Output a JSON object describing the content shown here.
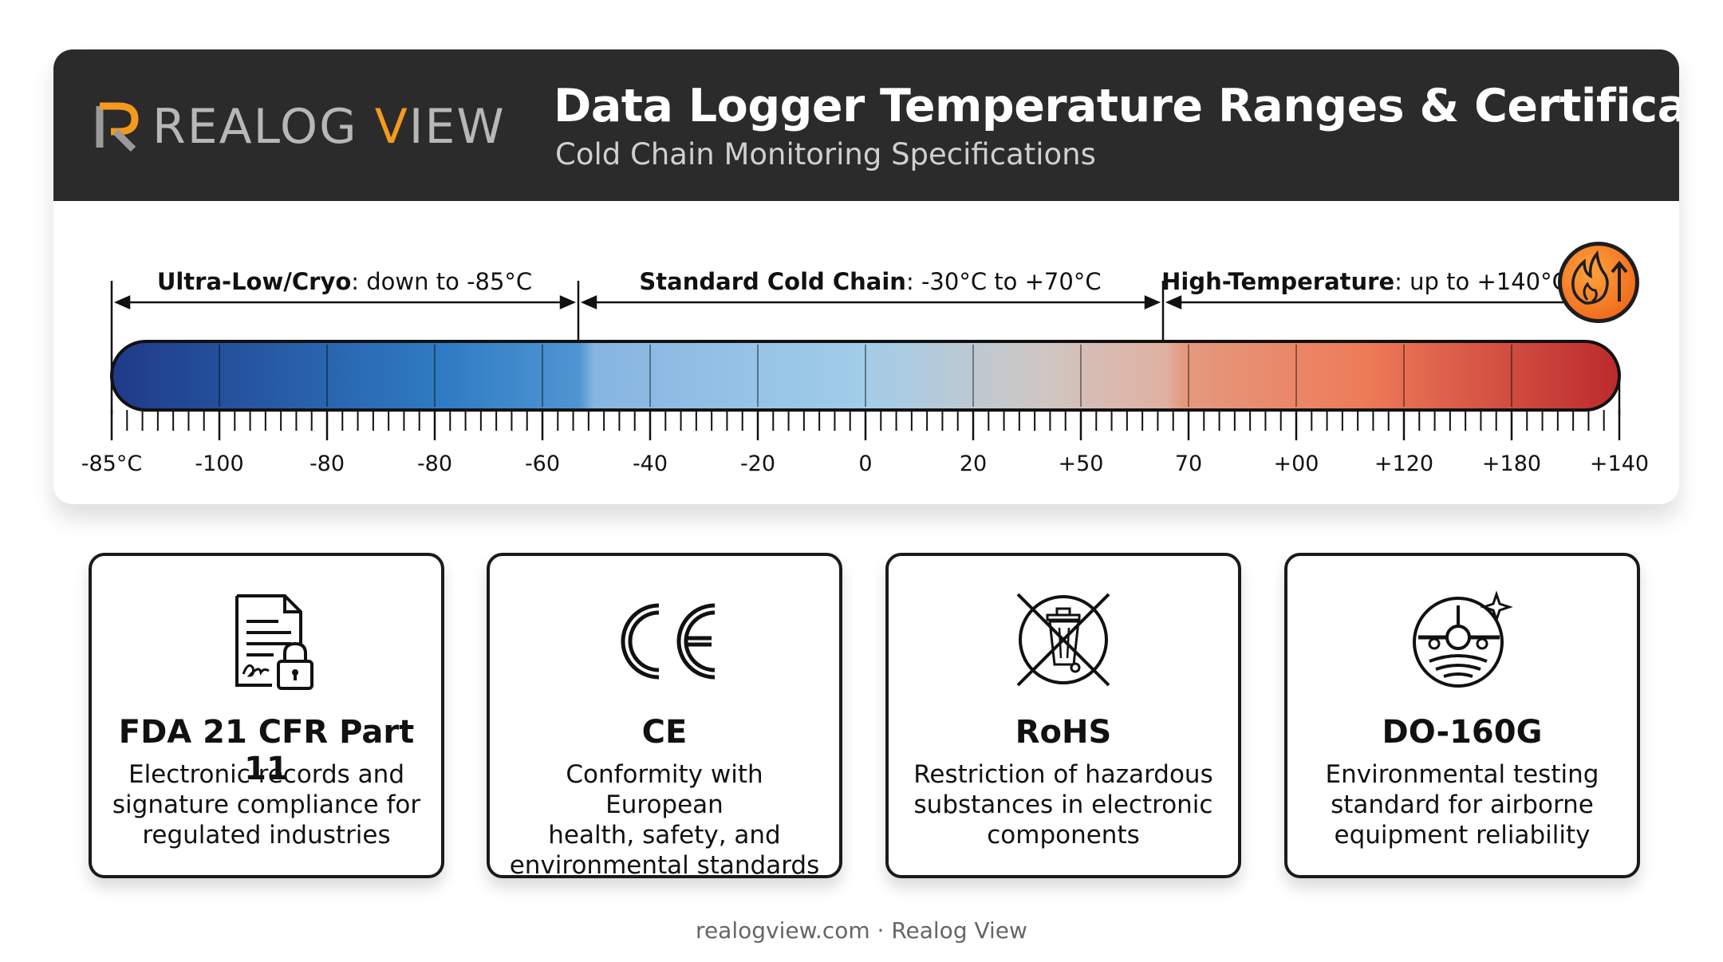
{
  "header": {
    "logo_letter": "R",
    "brand_main": "REALOG ",
    "brand_accent_letter": "V",
    "brand_rest": "IEW",
    "title": "Data Logger Temperature Ranges & Certifications",
    "subtitle": "Cold Chain Monitoring Specifications"
  },
  "colors": {
    "header_bg": "#2b2b2b",
    "brand_accent": "#f39a1e",
    "bar_cold": "#233f8c",
    "bar_mid": "#9ecfe8",
    "bar_hot": "#be2b2b",
    "badge": "#f7862a"
  },
  "ranges": [
    {
      "bold": "Ultra-Low/Cryo",
      "rest": ": down to -85°C"
    },
    {
      "bold": "Standard Cold Chain",
      "rest": ": -30°C to +70°C"
    },
    {
      "bold": "High-Temperature",
      "rest": ": up to +140°C"
    }
  ],
  "high_temp_icon": "flame-up-arrow-icon",
  "tick_labels": [
    "-85°C",
    "-100",
    "-80",
    "-80",
    "-60",
    "-40",
    "-20",
    "0",
    "20",
    "+50",
    "70",
    "+00",
    "+120",
    "+180",
    "+140"
  ],
  "certifications": [
    {
      "icon": "signed-document-lock-icon",
      "title": "FDA 21 CFR Part 11",
      "lines": [
        "Electronic records and",
        "signature compliance for",
        "regulated industries"
      ]
    },
    {
      "icon": "ce-mark-icon",
      "title": "CE",
      "lines": [
        "Conformity with European",
        "health, safety, and",
        "environmental standards"
      ]
    },
    {
      "icon": "crossed-out-bin-icon",
      "title": "RoHS",
      "lines": [
        "Restriction of hazardous",
        "substances in electronic",
        "components"
      ]
    },
    {
      "icon": "airplane-badge-icon",
      "title": "DO-160G",
      "lines": [
        "Environmental testing",
        "standard for airborne",
        "equipment reliability"
      ]
    }
  ],
  "footer": "realogview.com · Realog View"
}
